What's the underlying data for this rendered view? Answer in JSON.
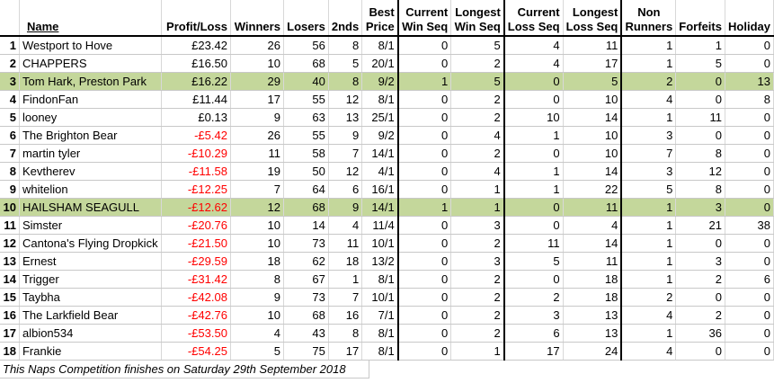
{
  "headers": {
    "rank": "",
    "name": "Name",
    "profit_loss": "Profit/Loss",
    "winners": "Winners",
    "losers": "Losers",
    "seconds": "2nds",
    "best_price": [
      "Best",
      "Price"
    ],
    "current_win_seq": [
      "Current",
      "Win Seq"
    ],
    "longest_win_seq": [
      "Longest",
      "Win Seq"
    ],
    "current_loss_seq": [
      "Current",
      "Loss Seq"
    ],
    "longest_loss_seq": [
      "Longest",
      "Loss Seq"
    ],
    "non_runners": [
      "Non",
      "Runners"
    ],
    "forfeits": "Forfeits",
    "holiday": "Holiday"
  },
  "rows": [
    {
      "rank": "1",
      "name": "Westport to Hove",
      "pl": "£23.42",
      "neg": false,
      "hl": false,
      "winners": "26",
      "losers": "56",
      "seconds": "8",
      "best": "8/1",
      "cws": "0",
      "lws": "5",
      "cls": "4",
      "lls": "11",
      "nr": "1",
      "forf": "1",
      "hol": "0"
    },
    {
      "rank": "2",
      "name": "CHAPPERS",
      "pl": "£16.50",
      "neg": false,
      "hl": false,
      "winners": "10",
      "losers": "68",
      "seconds": "5",
      "best": "20/1",
      "cws": "0",
      "lws": "2",
      "cls": "4",
      "lls": "17",
      "nr": "1",
      "forf": "5",
      "hol": "0"
    },
    {
      "rank": "3",
      "name": "Tom Hark, Preston Park",
      "pl": "£16.22",
      "neg": false,
      "hl": true,
      "winners": "29",
      "losers": "40",
      "seconds": "8",
      "best": "9/2",
      "cws": "1",
      "lws": "5",
      "cls": "0",
      "lls": "5",
      "nr": "2",
      "forf": "0",
      "hol": "13"
    },
    {
      "rank": "4",
      "name": "FindonFan",
      "pl": "£11.44",
      "neg": false,
      "hl": false,
      "winners": "17",
      "losers": "55",
      "seconds": "12",
      "best": "8/1",
      "cws": "0",
      "lws": "2",
      "cls": "0",
      "lls": "10",
      "nr": "4",
      "forf": "0",
      "hol": "8"
    },
    {
      "rank": "5",
      "name": "looney",
      "pl": "£0.13",
      "neg": false,
      "hl": false,
      "winners": "9",
      "losers": "63",
      "seconds": "13",
      "best": "25/1",
      "cws": "0",
      "lws": "2",
      "cls": "10",
      "lls": "14",
      "nr": "1",
      "forf": "11",
      "hol": "0"
    },
    {
      "rank": "6",
      "name": "The Brighton Bear",
      "pl": "-£5.42",
      "neg": true,
      "hl": false,
      "winners": "26",
      "losers": "55",
      "seconds": "9",
      "best": "9/2",
      "cws": "0",
      "lws": "4",
      "cls": "1",
      "lls": "10",
      "nr": "3",
      "forf": "0",
      "hol": "0"
    },
    {
      "rank": "7",
      "name": "martin tyler",
      "pl": "-£10.29",
      "neg": true,
      "hl": false,
      "winners": "11",
      "losers": "58",
      "seconds": "7",
      "best": "14/1",
      "cws": "0",
      "lws": "2",
      "cls": "0",
      "lls": "10",
      "nr": "7",
      "forf": "8",
      "hol": "0"
    },
    {
      "rank": "8",
      "name": "Kevtherev",
      "pl": "-£11.58",
      "neg": true,
      "hl": false,
      "winners": "19",
      "losers": "50",
      "seconds": "12",
      "best": "4/1",
      "cws": "0",
      "lws": "4",
      "cls": "1",
      "lls": "14",
      "nr": "3",
      "forf": "12",
      "hol": "0"
    },
    {
      "rank": "9",
      "name": "whitelion",
      "pl": "-£12.25",
      "neg": true,
      "hl": false,
      "winners": "7",
      "losers": "64",
      "seconds": "6",
      "best": "16/1",
      "cws": "0",
      "lws": "1",
      "cls": "1",
      "lls": "22",
      "nr": "5",
      "forf": "8",
      "hol": "0"
    },
    {
      "rank": "10",
      "name": "HAILSHAM SEAGULL",
      "pl": "-£12.62",
      "neg": true,
      "hl": true,
      "winners": "12",
      "losers": "68",
      "seconds": "9",
      "best": "14/1",
      "cws": "1",
      "lws": "1",
      "cls": "0",
      "lls": "11",
      "nr": "1",
      "forf": "3",
      "hol": "0"
    },
    {
      "rank": "11",
      "name": "Simster",
      "pl": "-£20.76",
      "neg": true,
      "hl": false,
      "winners": "10",
      "losers": "14",
      "seconds": "4",
      "best": "11/4",
      "cws": "0",
      "lws": "3",
      "cls": "0",
      "lls": "4",
      "nr": "1",
      "forf": "21",
      "hol": "38"
    },
    {
      "rank": "12",
      "name": "Cantona's Flying Dropkick",
      "pl": "-£21.50",
      "neg": true,
      "hl": false,
      "winners": "10",
      "losers": "73",
      "seconds": "11",
      "best": "10/1",
      "cws": "0",
      "lws": "2",
      "cls": "11",
      "lls": "14",
      "nr": "1",
      "forf": "0",
      "hol": "0"
    },
    {
      "rank": "13",
      "name": "Ernest",
      "pl": "-£29.59",
      "neg": true,
      "hl": false,
      "winners": "18",
      "losers": "62",
      "seconds": "18",
      "best": "13/2",
      "cws": "0",
      "lws": "3",
      "cls": "5",
      "lls": "11",
      "nr": "1",
      "forf": "3",
      "hol": "0"
    },
    {
      "rank": "14",
      "name": "Trigger",
      "pl": "-£31.42",
      "neg": true,
      "hl": false,
      "winners": "8",
      "losers": "67",
      "seconds": "1",
      "best": "8/1",
      "cws": "0",
      "lws": "2",
      "cls": "0",
      "lls": "18",
      "nr": "1",
      "forf": "2",
      "hol": "6"
    },
    {
      "rank": "15",
      "name": "Taybha",
      "pl": "-£42.08",
      "neg": true,
      "hl": false,
      "winners": "9",
      "losers": "73",
      "seconds": "7",
      "best": "10/1",
      "cws": "0",
      "lws": "2",
      "cls": "2",
      "lls": "18",
      "nr": "2",
      "forf": "0",
      "hol": "0"
    },
    {
      "rank": "16",
      "name": "The Larkfield Bear",
      "pl": "-£42.76",
      "neg": true,
      "hl": false,
      "winners": "10",
      "losers": "68",
      "seconds": "16",
      "best": "7/1",
      "cws": "0",
      "lws": "2",
      "cls": "3",
      "lls": "13",
      "nr": "4",
      "forf": "2",
      "hol": "0"
    },
    {
      "rank": "17",
      "name": "albion534",
      "pl": "-£53.50",
      "neg": true,
      "hl": false,
      "winners": "4",
      "losers": "43",
      "seconds": "8",
      "best": "8/1",
      "cws": "0",
      "lws": "2",
      "cls": "6",
      "lls": "13",
      "nr": "1",
      "forf": "36",
      "hol": "0"
    },
    {
      "rank": "18",
      "name": "Frankie",
      "pl": "-£54.25",
      "neg": true,
      "hl": false,
      "winners": "5",
      "losers": "75",
      "seconds": "17",
      "best": "8/1",
      "cws": "0",
      "lws": "1",
      "cls": "17",
      "lls": "24",
      "nr": "4",
      "forf": "0",
      "hol": "0"
    }
  ],
  "footer": "This Naps Competition finishes on Saturday 29th September 2018",
  "colors": {
    "highlight": "#c4d79b",
    "negative": "#ff0000"
  }
}
